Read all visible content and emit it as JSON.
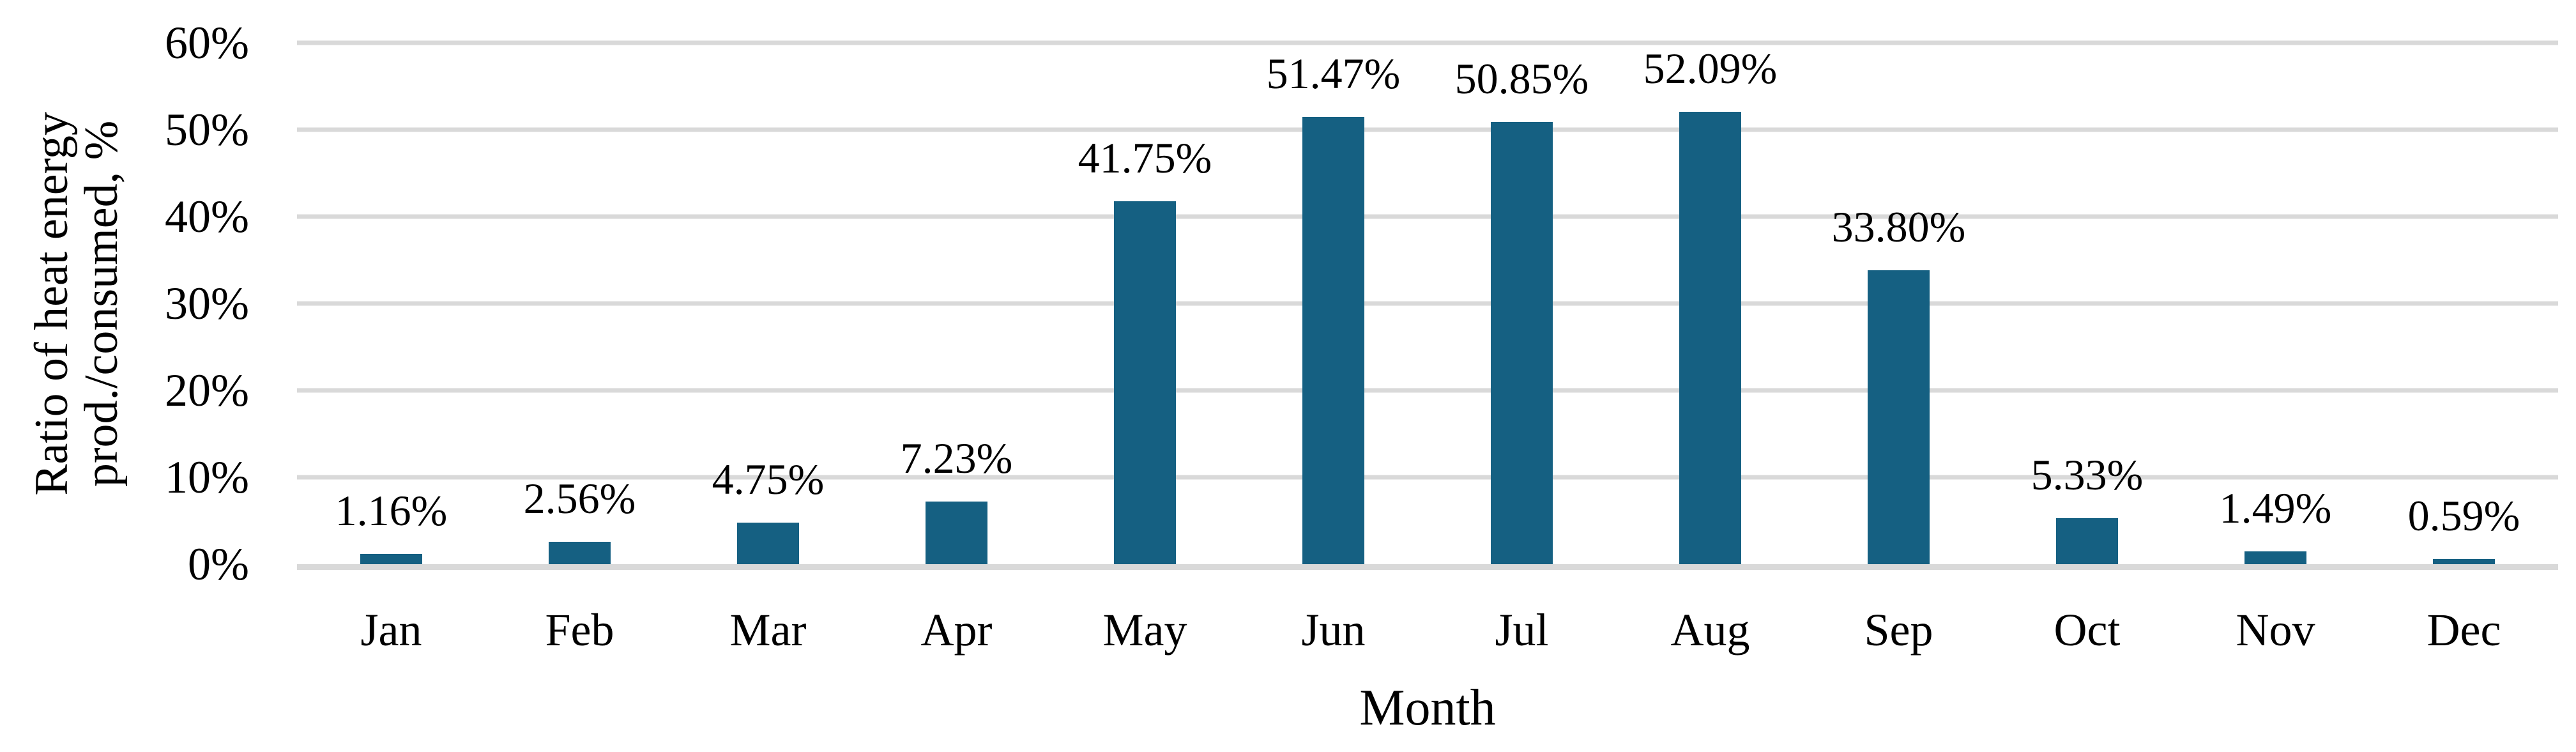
{
  "figure": {
    "background": "#ffffff",
    "bar_color": "#156082",
    "gridline_color": "#d9d9d9",
    "text_color": "#000000"
  },
  "y_axis": {
    "title_line1": "Ratio of heat energy",
    "title_line2": "prod./consumed, %",
    "ticks": [
      "60%",
      "50%",
      "40%",
      "30%",
      "20%",
      "10%",
      "0%"
    ]
  },
  "x_axis": {
    "title": "Month"
  },
  "chart_data": {
    "type": "bar",
    "title": "",
    "categories": [
      "Jan",
      "Feb",
      "Mar",
      "Apr",
      "May",
      "Jun",
      "Jul",
      "Aug",
      "Sep",
      "Oct",
      "Nov",
      "Dec"
    ],
    "values": [
      1.16,
      2.56,
      4.75,
      7.23,
      41.75,
      51.47,
      50.85,
      52.09,
      33.8,
      5.33,
      1.49,
      0.59
    ],
    "data_labels": [
      "1.16%",
      "2.56%",
      "4.75%",
      "7.23%",
      "41.75%",
      "51.47%",
      "50.85%",
      "52.09%",
      "33.80%",
      "5.33%",
      "1.49%",
      "0.59%"
    ],
    "xlabel": "Month",
    "ylabel": "Ratio of heat energy prod./consumed, %",
    "ylim": [
      0,
      60
    ],
    "ytick_step": 10,
    "grid": true,
    "legend": false
  }
}
